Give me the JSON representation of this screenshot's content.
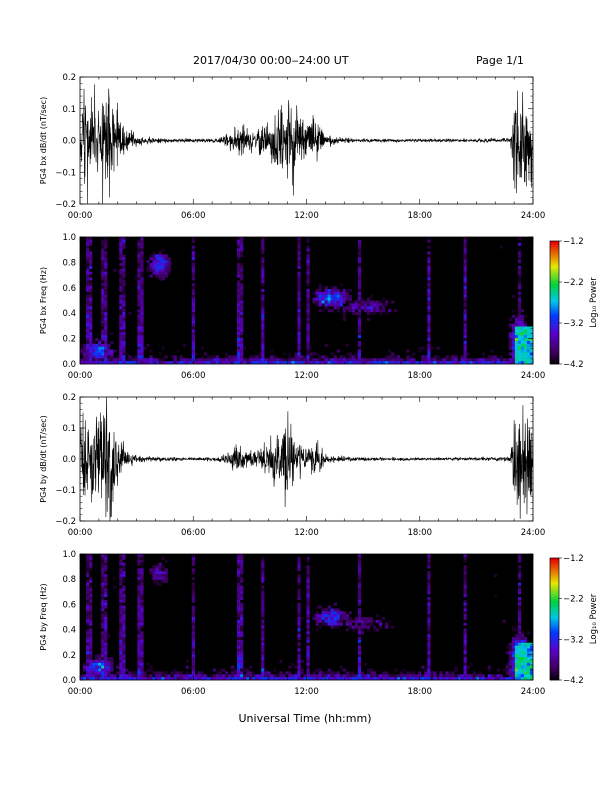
{
  "header": {
    "title": "2017/04/30  00:00‒24:00 UT",
    "page": "Page 1/1"
  },
  "xlabel": "Universal Time (hh:mm)",
  "chart_data": [
    {
      "type": "line",
      "ylabel": "PG4 bx dB/dt (nT/sec)",
      "xlim": [
        0,
        24
      ],
      "ylim": [
        -0.2,
        0.2
      ],
      "x_ticks": [
        "00:00",
        "06:00",
        "12:00",
        "18:00",
        "24:00"
      ],
      "y_ticks": [
        "0.2",
        "0.1",
        "0.0",
        "−0.1",
        "−0.2"
      ],
      "envelope": {
        "x": [
          0,
          0.3,
          0.6,
          1.0,
          1.5,
          2.0,
          2.5,
          3.0,
          4.0,
          5.0,
          6.0,
          7.0,
          7.5,
          8.0,
          8.5,
          9.0,
          9.5,
          10.0,
          10.5,
          11.0,
          11.5,
          12.0,
          12.5,
          13.0,
          14.0,
          15.0,
          16.0,
          17.0,
          18.0,
          19.0,
          20.0,
          21.0,
          22.0,
          22.8,
          23.1,
          23.4,
          23.7,
          24.0
        ],
        "amp": [
          0.09,
          0.19,
          0.17,
          0.14,
          0.2,
          0.1,
          0.04,
          0.015,
          0.008,
          0.006,
          0.005,
          0.006,
          0.012,
          0.03,
          0.05,
          0.03,
          0.04,
          0.06,
          0.12,
          0.15,
          0.13,
          0.05,
          0.07,
          0.015,
          0.008,
          0.006,
          0.006,
          0.005,
          0.005,
          0.005,
          0.005,
          0.006,
          0.006,
          0.008,
          0.2,
          0.2,
          0.2,
          0.15
        ]
      }
    },
    {
      "type": "heatmap",
      "ylabel": "PG4 bx Freq (Hz)",
      "xlim": [
        0,
        24
      ],
      "ylim": [
        0,
        1.0
      ],
      "x_ticks": [
        "00:00",
        "06:00",
        "12:00",
        "18:00",
        "24:00"
      ],
      "y_ticks": [
        "1.0",
        "0.8",
        "0.6",
        "0.4",
        "0.2",
        "0.0"
      ],
      "colorbar": {
        "label": "Log₁₀ Power",
        "ticks": [
          "−1.2",
          "−2.2",
          "−3.2",
          "−4.2"
        ],
        "range": [
          -4.2,
          -1.2
        ]
      },
      "features": [
        {
          "t": 4.2,
          "f": 0.78,
          "dt": 0.7,
          "df": 0.12,
          "level": -3.0
        },
        {
          "t": 13.3,
          "f": 0.52,
          "dt": 1.2,
          "df": 0.1,
          "level": -3.0
        },
        {
          "t": 15.0,
          "f": 0.45,
          "dt": 2.0,
          "df": 0.1,
          "level": -3.6
        },
        {
          "t": 1.0,
          "f": 0.1,
          "dt": 1.0,
          "df": 0.1,
          "level": -3.0
        },
        {
          "t": 23.3,
          "f": 0.15,
          "dt": 0.6,
          "df": 0.25,
          "level": -2.6
        }
      ],
      "vertical_stripes": [
        0.5,
        1.3,
        2.2,
        3.2,
        6.0,
        8.5,
        9.7,
        11.6,
        12.1,
        14.8,
        18.5,
        20.4,
        23.3
      ]
    },
    {
      "type": "line",
      "ylabel": "PG4 by dB/dt (nT/sec)",
      "xlim": [
        0,
        24
      ],
      "ylim": [
        -0.2,
        0.2
      ],
      "x_ticks": [
        "00:00",
        "06:00",
        "12:00",
        "18:00",
        "24:00"
      ],
      "y_ticks": [
        "0.2",
        "0.1",
        "0.0",
        "−0.1",
        "−0.2"
      ],
      "envelope": {
        "x": [
          0,
          0.3,
          0.6,
          1.0,
          1.5,
          2.0,
          2.5,
          3.0,
          4.0,
          5.0,
          6.0,
          7.0,
          7.5,
          8.0,
          8.5,
          9.0,
          9.5,
          10.0,
          10.5,
          11.0,
          11.5,
          12.0,
          12.5,
          13.0,
          14.0,
          15.0,
          16.0,
          17.0,
          18.0,
          19.0,
          20.0,
          21.0,
          22.0,
          22.8,
          23.1,
          23.4,
          23.7,
          24.0
        ],
        "amp": [
          0.07,
          0.15,
          0.12,
          0.16,
          0.2,
          0.08,
          0.03,
          0.012,
          0.008,
          0.006,
          0.005,
          0.006,
          0.01,
          0.03,
          0.045,
          0.03,
          0.035,
          0.05,
          0.09,
          0.12,
          0.07,
          0.03,
          0.06,
          0.015,
          0.008,
          0.006,
          0.006,
          0.005,
          0.005,
          0.005,
          0.005,
          0.006,
          0.006,
          0.008,
          0.2,
          0.2,
          0.2,
          0.15
        ]
      }
    },
    {
      "type": "heatmap",
      "ylabel": "PG4 by Freq (Hz)",
      "xlim": [
        0,
        24
      ],
      "ylim": [
        0,
        1.0
      ],
      "x_ticks": [
        "00:00",
        "06:00",
        "12:00",
        "18:00",
        "24:00"
      ],
      "y_ticks": [
        "1.0",
        "0.8",
        "0.6",
        "0.4",
        "0.2",
        "0.0"
      ],
      "colorbar": {
        "label": "Log₁₀ Power",
        "ticks": [
          "−1.2",
          "−2.2",
          "−3.2",
          "−4.2"
        ],
        "range": [
          -4.2,
          -1.2
        ]
      },
      "features": [
        {
          "t": 4.2,
          "f": 0.85,
          "dt": 0.7,
          "df": 0.12,
          "level": -3.6
        },
        {
          "t": 13.3,
          "f": 0.5,
          "dt": 1.2,
          "df": 0.1,
          "level": -3.2
        },
        {
          "t": 15.0,
          "f": 0.45,
          "dt": 2.0,
          "df": 0.1,
          "level": -3.8
        },
        {
          "t": 1.0,
          "f": 0.1,
          "dt": 1.0,
          "df": 0.1,
          "level": -3.0
        },
        {
          "t": 23.3,
          "f": 0.15,
          "dt": 0.6,
          "df": 0.25,
          "level": -2.6
        }
      ],
      "vertical_stripes": [
        0.5,
        1.3,
        2.2,
        3.2,
        6.0,
        8.5,
        9.7,
        11.6,
        12.1,
        14.8,
        18.5,
        20.4,
        23.3
      ]
    }
  ]
}
